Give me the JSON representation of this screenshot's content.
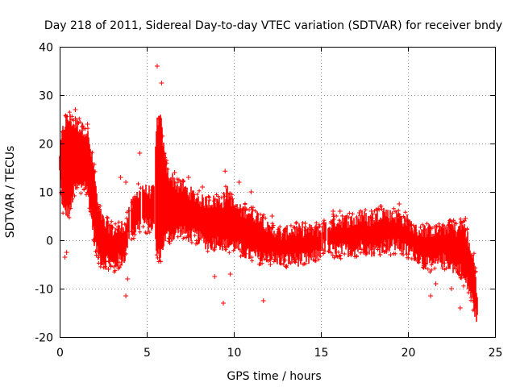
{
  "chart_data": {
    "type": "scatter",
    "title": "Day 218 of 2011, Sidereal Day-to-day VTEC variation (SDTVAR) for receiver bndy",
    "xlabel": "GPS time / hours",
    "ylabel": "SDTVAR / TECUs",
    "xlim": [
      0,
      25
    ],
    "ylim": [
      -20,
      40
    ],
    "xticks": [
      0,
      5,
      10,
      15,
      20,
      25
    ],
    "yticks": [
      -20,
      -10,
      0,
      10,
      20,
      30,
      40
    ],
    "grid": true,
    "marker": "+",
    "series": [
      {
        "name": "SDTVAR",
        "color": "#ff0000",
        "band_x": [
          0.0,
          0.2,
          0.4,
          0.6,
          0.8,
          1.0,
          1.2,
          1.4,
          1.6,
          1.8,
          2.0,
          2.2,
          2.4,
          2.6,
          2.8,
          3.0,
          3.2,
          3.4,
          3.6,
          3.8,
          4.0,
          4.1,
          4.3,
          4.5,
          4.8,
          5.0,
          5.4,
          5.6,
          5.8,
          6.0,
          6.2,
          6.4,
          6.6,
          6.8,
          7.0,
          7.4,
          7.8,
          8.2,
          8.6,
          9.0,
          9.4,
          9.6,
          9.8,
          10.0,
          10.4,
          10.8,
          11.2,
          11.6,
          12.0,
          12.4,
          12.8,
          13.2,
          13.6,
          14.0,
          14.4,
          14.8,
          15.0,
          15.1,
          15.5,
          15.8,
          16.2,
          16.6,
          17.0,
          17.4,
          17.8,
          18.2,
          18.6,
          19.0,
          19.4,
          19.8,
          20.0,
          20.4,
          20.8,
          21.2,
          21.6,
          22.0,
          22.4,
          22.8,
          23.0,
          23.2,
          23.4,
          23.6,
          23.8,
          24.0
        ],
        "band_lo": [
          14,
          6,
          6,
          6,
          10,
          11,
          11,
          12,
          10,
          6,
          0,
          -3,
          -4,
          -4,
          -4,
          -5,
          -5,
          -4,
          -4,
          -3,
          2,
          2,
          2,
          3,
          4,
          3,
          3,
          -3,
          -3,
          0,
          1,
          1,
          1,
          2,
          2,
          1,
          1,
          0,
          -1,
          0,
          -1,
          -1,
          -1,
          -1,
          -2,
          -3,
          -3,
          -4,
          -3,
          -4,
          -4,
          -4,
          -4,
          -4,
          -4,
          -3,
          -2,
          -1,
          -2,
          -2,
          -2,
          -2,
          -2,
          -1,
          -2,
          -2,
          -1,
          -1,
          -1,
          -2,
          -2,
          -3,
          -4,
          -5,
          -5,
          -4,
          -5,
          -6,
          -6,
          -8,
          -9,
          -11,
          -14,
          -17
        ],
        "band_hi": [
          18,
          23,
          25,
          25,
          24,
          24,
          23,
          23,
          22,
          18,
          14,
          6,
          5,
          3,
          3,
          2,
          2,
          2,
          3,
          3,
          6,
          7,
          8,
          10,
          11,
          10,
          10,
          25,
          25,
          18,
          14,
          13,
          12,
          11,
          11,
          10,
          9,
          8,
          8,
          8,
          8,
          10,
          9,
          7,
          6,
          6,
          5,
          5,
          2,
          2,
          1,
          2,
          2,
          2,
          2,
          2,
          2,
          3,
          3,
          4,
          4,
          4,
          4,
          5,
          4,
          5,
          6,
          5,
          5,
          4,
          4,
          2,
          2,
          2,
          2,
          2,
          3,
          2,
          3,
          3,
          1,
          -3,
          -4,
          -12
        ],
        "gap_x": [
          4.05,
          4.7,
          5.45,
          15.05,
          15.35
        ],
        "points": [
          [
            5.6,
            36
          ],
          [
            5.85,
            32.5
          ],
          [
            0.9,
            27
          ],
          [
            1.6,
            24
          ],
          [
            4.6,
            18
          ],
          [
            7.4,
            13
          ],
          [
            3.5,
            13
          ],
          [
            3.8,
            12
          ],
          [
            8.2,
            11
          ],
          [
            10.3,
            12
          ],
          [
            11.0,
            10
          ],
          [
            9.4,
            -13
          ],
          [
            11.7,
            -12.5
          ],
          [
            3.8,
            -11.5
          ],
          [
            3.9,
            -8
          ],
          [
            0.3,
            -3.5
          ],
          [
            0.4,
            -2.5
          ],
          [
            16.5,
            5
          ],
          [
            16.1,
            6
          ],
          [
            15.7,
            6
          ],
          [
            14.1,
            3.5
          ],
          [
            13.5,
            -4
          ],
          [
            8.9,
            -7.5
          ],
          [
            9.8,
            -7
          ],
          [
            12.1,
            -5
          ],
          [
            21.3,
            -11.5
          ],
          [
            23.0,
            -14
          ],
          [
            21.6,
            -9
          ],
          [
            22.5,
            -10
          ],
          [
            23.3,
            4.5
          ],
          [
            22.3,
            3
          ],
          [
            2.8,
            -6
          ],
          [
            19.0,
            -3
          ],
          [
            18.4,
            -3
          ],
          [
            17.9,
            6
          ],
          [
            19.5,
            7.5
          ],
          [
            12.2,
            5
          ],
          [
            9.5,
            14.3
          ],
          [
            7.1,
            10
          ],
          [
            6.6,
            14
          ]
        ]
      }
    ]
  }
}
